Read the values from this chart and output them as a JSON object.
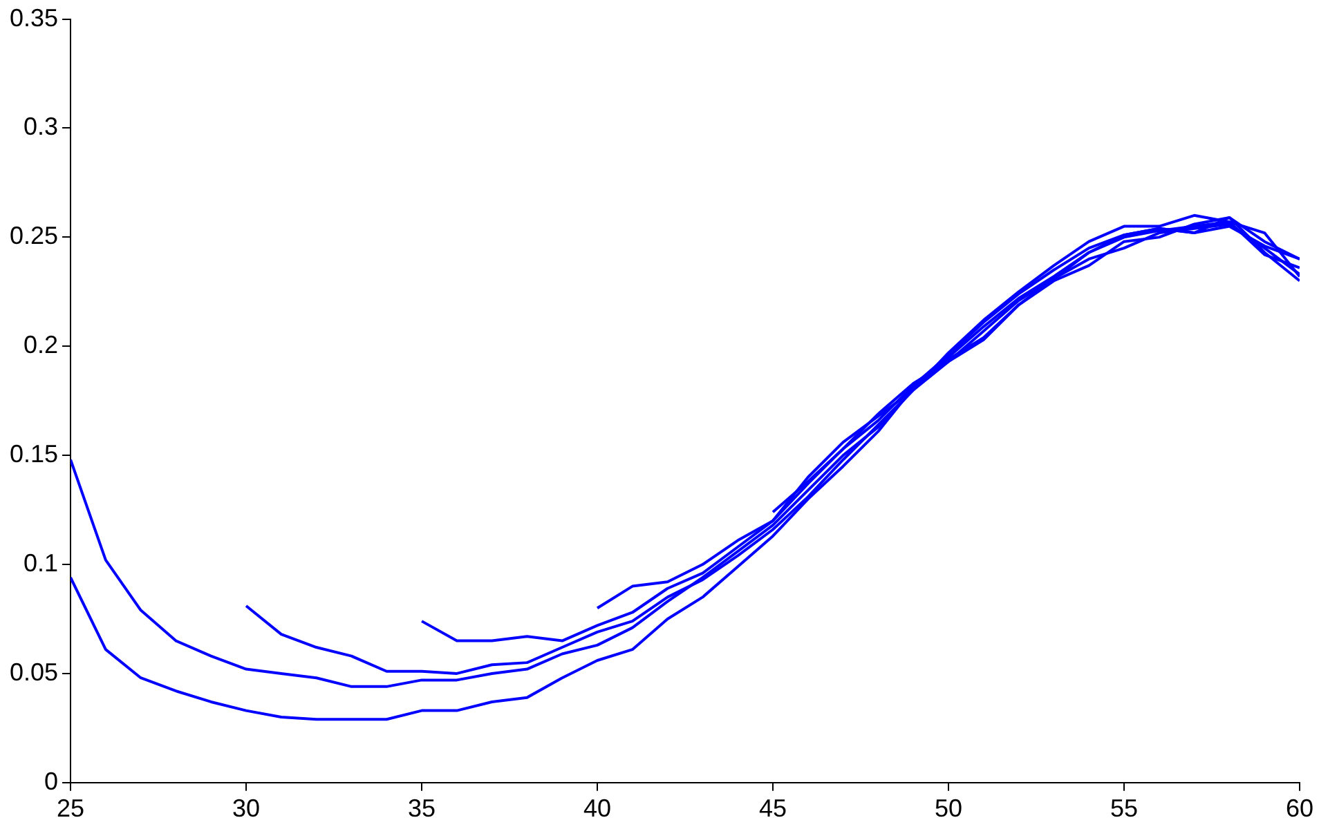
{
  "chart_data": {
    "type": "line",
    "x": [
      25,
      26,
      27,
      28,
      29,
      30,
      31,
      32,
      33,
      34,
      35,
      36,
      37,
      38,
      39,
      40,
      41,
      42,
      43,
      44,
      45,
      46,
      47,
      48,
      49,
      50,
      51,
      52,
      53,
      54,
      55,
      56,
      57,
      58,
      59,
      60
    ],
    "series": [
      {
        "color": "#0000ff",
        "values": [
          0.148,
          0.102,
          0.079,
          0.065,
          0.058,
          0.052,
          0.05,
          0.048,
          0.044,
          0.044,
          0.047,
          0.047,
          0.05,
          0.052,
          0.059,
          0.063,
          0.071,
          0.083,
          0.094,
          0.106,
          0.118,
          0.134,
          0.15,
          0.163,
          0.18,
          0.193,
          0.207,
          0.221,
          0.231,
          0.24,
          0.245,
          0.252,
          0.254,
          0.256,
          0.245,
          0.233
        ]
      },
      {
        "color": "#0000ff",
        "values": [
          0.094,
          0.061,
          0.048,
          0.042,
          0.037,
          0.033,
          0.03,
          0.029,
          0.029,
          0.029,
          0.033,
          0.033,
          0.037,
          0.039,
          0.048,
          0.056,
          0.061,
          0.075,
          0.085,
          0.099,
          0.113,
          0.13,
          0.145,
          0.161,
          0.181,
          0.194,
          0.204,
          0.219,
          0.23,
          0.237,
          0.248,
          0.25,
          0.256,
          0.259,
          0.243,
          0.23
        ]
      },
      {
        "color": "#0000ff",
        "values": [
          null,
          null,
          null,
          null,
          null,
          0.081,
          0.068,
          0.062,
          0.058,
          0.051,
          0.051,
          0.05,
          0.054,
          0.055,
          0.062,
          0.069,
          0.074,
          0.085,
          0.093,
          0.104,
          0.116,
          0.131,
          0.148,
          0.164,
          0.18,
          0.195,
          0.209,
          0.222,
          0.232,
          0.243,
          0.25,
          0.253,
          0.255,
          0.257,
          0.242,
          0.236
        ]
      },
      {
        "color": "#0000ff",
        "values": [
          null,
          null,
          null,
          null,
          null,
          null,
          null,
          null,
          null,
          null,
          0.074,
          0.065,
          0.065,
          0.067,
          0.065,
          0.072,
          0.078,
          0.089,
          0.096,
          0.108,
          0.12,
          0.137,
          0.153,
          0.166,
          0.182,
          0.196,
          0.211,
          0.224,
          0.235,
          0.245,
          0.251,
          0.254,
          0.252,
          0.255,
          0.246,
          0.24
        ]
      },
      {
        "color": "#0000ff",
        "values": [
          null,
          null,
          null,
          null,
          null,
          null,
          null,
          null,
          null,
          null,
          null,
          null,
          null,
          null,
          null,
          0.08,
          0.09,
          0.092,
          0.1,
          0.111,
          0.12,
          0.14,
          0.156,
          0.168,
          0.18,
          0.197,
          0.212,
          0.225,
          0.237,
          0.248,
          0.255,
          0.255,
          0.26,
          0.257,
          0.252,
          0.232
        ]
      },
      {
        "color": "#0000ff",
        "values": [
          null,
          null,
          null,
          null,
          null,
          null,
          null,
          null,
          null,
          null,
          null,
          null,
          null,
          null,
          null,
          null,
          null,
          null,
          null,
          null,
          0.124,
          0.138,
          0.153,
          0.169,
          0.183,
          0.193,
          0.203,
          0.219,
          0.231,
          0.243,
          0.251,
          0.254,
          0.252,
          0.259,
          0.248,
          0.24
        ]
      }
    ],
    "xlim": [
      25,
      60
    ],
    "xticks": [
      25,
      30,
      35,
      40,
      45,
      50,
      55,
      60
    ],
    "ylim": [
      0,
      0.35
    ],
    "yticks": [
      0,
      0.05,
      0.1,
      0.15,
      0.2,
      0.25,
      0.3,
      0.35
    ],
    "grid": false,
    "legend": false,
    "marker": "none",
    "line_style": "solid"
  }
}
